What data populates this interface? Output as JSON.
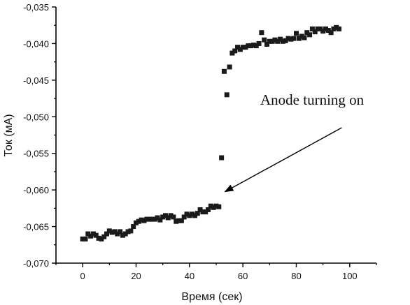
{
  "chart_data": {
    "type": "scatter",
    "title": "",
    "xlabel": "Время (сек)",
    "ylabel": "Ток (мА)",
    "xlim": [
      -10,
      110
    ],
    "ylim": [
      -0.07,
      -0.035
    ],
    "x_ticks": [
      0,
      20,
      40,
      60,
      80,
      100
    ],
    "x_tick_labels": [
      "0",
      "20",
      "40",
      "60",
      "80",
      "100"
    ],
    "y_ticks": [
      -0.07,
      -0.065,
      -0.06,
      -0.055,
      -0.05,
      -0.045,
      -0.04,
      -0.035
    ],
    "y_tick_labels": [
      "-0,070",
      "-0,065",
      "-0,060",
      "-0,055",
      "-0,050",
      "-0,045",
      "-0,040",
      "-0,035"
    ],
    "grid": false,
    "marker_color": "#1a1a1a",
    "series": [
      {
        "marker": "square",
        "points": [
          [
            0,
            -0.0667
          ],
          [
            1,
            -0.0667
          ],
          [
            2,
            -0.066
          ],
          [
            3,
            -0.0663
          ],
          [
            4,
            -0.066
          ],
          [
            5,
            -0.0662
          ],
          [
            6,
            -0.0666
          ],
          [
            7,
            -0.0667
          ],
          [
            8,
            -0.0664
          ],
          [
            9,
            -0.066
          ],
          [
            10,
            -0.0656
          ],
          [
            11,
            -0.0658
          ],
          [
            12,
            -0.0657
          ],
          [
            13,
            -0.066
          ],
          [
            14,
            -0.0657
          ],
          [
            15,
            -0.0662
          ],
          [
            16,
            -0.066
          ],
          [
            17,
            -0.0657
          ],
          [
            18,
            -0.0656
          ],
          [
            19,
            -0.065
          ],
          [
            20,
            -0.0645
          ],
          [
            21,
            -0.0643
          ],
          [
            22,
            -0.0641
          ],
          [
            23,
            -0.0642
          ],
          [
            24,
            -0.064
          ],
          [
            25,
            -0.064
          ],
          [
            26,
            -0.064
          ],
          [
            27,
            -0.064
          ],
          [
            28,
            -0.0638
          ],
          [
            29,
            -0.0641
          ],
          [
            30,
            -0.0637
          ],
          [
            31,
            -0.0635
          ],
          [
            32,
            -0.0638
          ],
          [
            33,
            -0.0635
          ],
          [
            34,
            -0.0637
          ],
          [
            35,
            -0.0643
          ],
          [
            36,
            -0.0642
          ],
          [
            37,
            -0.0642
          ],
          [
            38,
            -0.0637
          ],
          [
            39,
            -0.0633
          ],
          [
            40,
            -0.0635
          ],
          [
            41,
            -0.0633
          ],
          [
            42,
            -0.0635
          ],
          [
            43,
            -0.0632
          ],
          [
            44,
            -0.0627
          ],
          [
            45,
            -0.063
          ],
          [
            46,
            -0.063
          ],
          [
            47,
            -0.0627
          ],
          [
            48,
            -0.0622
          ],
          [
            49,
            -0.0624
          ],
          [
            50,
            -0.0622
          ],
          [
            51,
            -0.0623
          ],
          [
            52,
            -0.0556
          ],
          [
            53,
            -0.0438
          ],
          [
            54,
            -0.047
          ],
          [
            55,
            -0.0432
          ],
          [
            56,
            -0.0413
          ],
          [
            57,
            -0.041
          ],
          [
            58,
            -0.0405
          ],
          [
            59,
            -0.0408
          ],
          [
            60,
            -0.0405
          ],
          [
            61,
            -0.0405
          ],
          [
            62,
            -0.0403
          ],
          [
            63,
            -0.0403
          ],
          [
            64,
            -0.0402
          ],
          [
            65,
            -0.0403
          ],
          [
            66,
            -0.04
          ],
          [
            67,
            -0.0385
          ],
          [
            68,
            -0.0395
          ],
          [
            69,
            -0.0401
          ],
          [
            70,
            -0.0397
          ],
          [
            71,
            -0.0397
          ],
          [
            72,
            -0.0395
          ],
          [
            73,
            -0.0397
          ],
          [
            74,
            -0.0394
          ],
          [
            75,
            -0.0397
          ],
          [
            76,
            -0.0396
          ],
          [
            77,
            -0.0393
          ],
          [
            78,
            -0.0394
          ],
          [
            79,
            -0.0393
          ],
          [
            80,
            -0.0386
          ],
          [
            81,
            -0.0393
          ],
          [
            82,
            -0.039
          ],
          [
            83,
            -0.0392
          ],
          [
            84,
            -0.0385
          ],
          [
            85,
            -0.0388
          ],
          [
            86,
            -0.038
          ],
          [
            87,
            -0.0384
          ],
          [
            88,
            -0.038
          ],
          [
            89,
            -0.038
          ],
          [
            90,
            -0.0383
          ],
          [
            91,
            -0.038
          ],
          [
            92,
            -0.0382
          ],
          [
            93,
            -0.0385
          ],
          [
            94,
            -0.038
          ],
          [
            95,
            -0.0378
          ],
          [
            96,
            -0.038
          ]
        ]
      }
    ],
    "annotation": {
      "text": "Anode turning on",
      "arrow_from": [
        97,
        -0.0515
      ],
      "arrow_to": [
        53,
        -0.0603
      ]
    }
  }
}
